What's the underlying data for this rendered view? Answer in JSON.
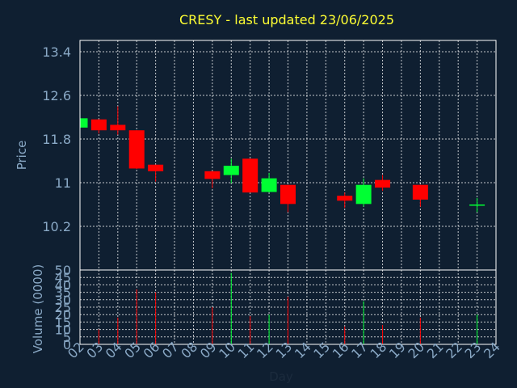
{
  "chart_data": [
    {
      "type": "candlestick",
      "title": "CRESY - last updated 23/06/2025",
      "ylabel": "Price",
      "ylim": [
        10.2,
        13.4
      ],
      "yticks": [
        "13.4",
        "12.6",
        "11.8",
        "11",
        "10.2"
      ],
      "categories": [
        "02",
        "03",
        "04",
        "05",
        "06",
        "07",
        "08",
        "09",
        "10",
        "11",
        "12",
        "13",
        "14",
        "15",
        "16",
        "17",
        "18",
        "19",
        "20",
        "21",
        "22",
        "23",
        "24"
      ],
      "grid": true,
      "colors": {
        "up": "#00ff33",
        "down": "#ff0000"
      },
      "candles": [
        {
          "day": "02",
          "open": 12.01,
          "high": 12.18,
          "low": 12.01,
          "close": 12.18,
          "dir": "up"
        },
        {
          "day": "03",
          "open": 12.16,
          "high": 12.16,
          "low": 11.9,
          "close": 11.96,
          "dir": "down"
        },
        {
          "day": "04",
          "open": 12.06,
          "high": 12.4,
          "low": 11.88,
          "close": 11.96,
          "dir": "down"
        },
        {
          "day": "05",
          "open": 11.96,
          "high": 11.96,
          "low": 11.25,
          "close": 11.26,
          "dir": "down"
        },
        {
          "day": "06",
          "open": 11.33,
          "high": 11.33,
          "low": 11.02,
          "close": 11.21,
          "dir": "down"
        },
        {
          "day": "09",
          "open": 11.21,
          "high": 11.21,
          "low": 10.9,
          "close": 11.07,
          "dir": "down"
        },
        {
          "day": "10",
          "open": 11.14,
          "high": 11.44,
          "low": 10.99,
          "close": 11.31,
          "dir": "up"
        },
        {
          "day": "11",
          "open": 11.44,
          "high": 11.44,
          "low": 10.82,
          "close": 10.82,
          "dir": "down"
        },
        {
          "day": "12",
          "open": 10.83,
          "high": 11.18,
          "low": 10.82,
          "close": 11.08,
          "dir": "up"
        },
        {
          "day": "13",
          "open": 10.96,
          "high": 10.96,
          "low": 10.46,
          "close": 10.61,
          "dir": "down"
        },
        {
          "day": "16",
          "open": 10.76,
          "high": 10.82,
          "low": 10.54,
          "close": 10.67,
          "dir": "down"
        },
        {
          "day": "17",
          "open": 10.61,
          "high": 11.08,
          "low": 10.56,
          "close": 10.96,
          "dir": "up"
        },
        {
          "day": "18",
          "open": 11.05,
          "high": 11.14,
          "low": 10.85,
          "close": 10.91,
          "dir": "down"
        },
        {
          "day": "20",
          "open": 10.96,
          "high": 10.96,
          "low": 10.56,
          "close": 10.69,
          "dir": "down"
        },
        {
          "day": "23",
          "open": 10.6,
          "high": 10.72,
          "low": 10.46,
          "close": 10.6,
          "dir": "up"
        }
      ]
    },
    {
      "type": "bar",
      "xlabel": "Day",
      "ylabel": "Volume (0000)",
      "ylim": [
        0,
        50
      ],
      "yticks": [
        "50",
        "45",
        "40",
        "35",
        "30",
        "25",
        "20",
        "15",
        "10",
        "5",
        "0"
      ],
      "categories": [
        "02",
        "03",
        "04",
        "05",
        "06",
        "07",
        "08",
        "09",
        "10",
        "11",
        "12",
        "13",
        "14",
        "15",
        "16",
        "17",
        "18",
        "19",
        "20",
        "21",
        "22",
        "23",
        "24"
      ],
      "grid": true,
      "bars": [
        {
          "day": "03",
          "value": 10,
          "dir": "down"
        },
        {
          "day": "04",
          "value": 18,
          "dir": "down"
        },
        {
          "day": "05",
          "value": 37,
          "dir": "down"
        },
        {
          "day": "06",
          "value": 35,
          "dir": "down"
        },
        {
          "day": "09",
          "value": 25,
          "dir": "down"
        },
        {
          "day": "10",
          "value": 48,
          "dir": "up"
        },
        {
          "day": "11",
          "value": 19,
          "dir": "down"
        },
        {
          "day": "12",
          "value": 20,
          "dir": "up"
        },
        {
          "day": "13",
          "value": 32,
          "dir": "down"
        },
        {
          "day": "16",
          "value": 12,
          "dir": "down"
        },
        {
          "day": "17",
          "value": 29,
          "dir": "up"
        },
        {
          "day": "18",
          "value": 13,
          "dir": "down"
        },
        {
          "day": "20",
          "value": 18,
          "dir": "down"
        },
        {
          "day": "23",
          "value": 20,
          "dir": "up"
        }
      ]
    }
  ]
}
